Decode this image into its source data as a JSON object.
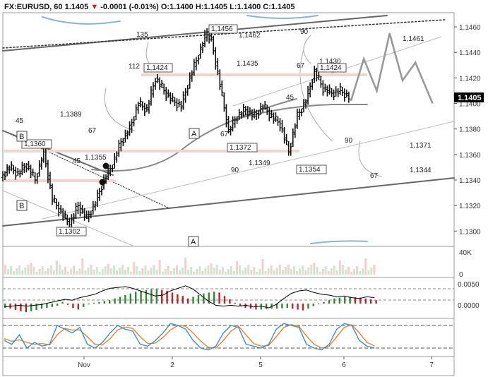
{
  "header": {
    "symbol": "FX:EURUSD, 60",
    "last": "1.1405",
    "change": "-0.0001 (-0.01%)",
    "open_label": "O:",
    "open": "1.1400",
    "high_label": "H:",
    "high": "1.1405",
    "low_label": "L:",
    "low": "1.1400",
    "close_label": "C:",
    "close": "1.1405"
  },
  "colors": {
    "up": "#2e8b2e",
    "down": "#cc1f1f",
    "price": "#000000",
    "macd_line": "#000000",
    "stoch_k": "#3a8fd6",
    "stoch_d": "#e8842c"
  },
  "chart_data": {
    "type": "line",
    "price_axis": {
      "ticks": [
        "1.1460",
        "1.1440",
        "1.1420",
        "1.1400",
        "1.1380",
        "1.1360",
        "1.1340",
        "1.1320",
        "1.1300"
      ],
      "range": [
        1.1288,
        1.147
      ],
      "last_label": "1.1405"
    },
    "x_axis": {
      "ticks": [
        "Nov",
        "2",
        "5",
        "6",
        "7"
      ]
    },
    "price_path": [
      [
        0,
        1.1342
      ],
      [
        4,
        1.135
      ],
      [
        8,
        1.1345
      ],
      [
        12,
        1.1352
      ],
      [
        16,
        1.134
      ],
      [
        20,
        1.1362
      ],
      [
        24,
        1.1325
      ],
      [
        28,
        1.1315
      ],
      [
        32,
        1.1305
      ],
      [
        36,
        1.132
      ],
      [
        40,
        1.131
      ],
      [
        44,
        1.1322
      ],
      [
        48,
        1.134
      ],
      [
        52,
        1.1352
      ],
      [
        56,
        1.137
      ],
      [
        60,
        1.138
      ],
      [
        64,
        1.14
      ],
      [
        68,
        1.1395
      ],
      [
        72,
        1.142
      ],
      [
        76,
        1.141
      ],
      [
        80,
        1.1402
      ],
      [
        84,
        1.1398
      ],
      [
        88,
        1.142
      ],
      [
        92,
        1.1438
      ],
      [
        96,
        1.1456
      ],
      [
        98,
        1.145
      ],
      [
        102,
        1.1415
      ],
      [
        106,
        1.1378
      ],
      [
        110,
        1.139
      ],
      [
        114,
        1.1395
      ],
      [
        118,
        1.139
      ],
      [
        122,
        1.1398
      ],
      [
        126,
        1.139
      ],
      [
        130,
        1.1384
      ],
      [
        134,
        1.1362
      ],
      [
        138,
        1.139
      ],
      [
        142,
        1.1402
      ],
      [
        146,
        1.1425
      ],
      [
        150,
        1.1412
      ],
      [
        154,
        1.1408
      ],
      [
        158,
        1.141
      ],
      [
        162,
        1.1405
      ]
    ],
    "projection": [
      [
        162,
        1.1402
      ],
      [
        168,
        1.1435
      ],
      [
        174,
        1.141
      ],
      [
        180,
        1.1455
      ],
      [
        186,
        1.1418
      ],
      [
        192,
        1.1432
      ],
      [
        200,
        1.14
      ]
    ],
    "levels": [
      {
        "label": "1,1461",
        "value": 1.1461
      },
      {
        "label": "1,1456",
        "value": 1.1456
      },
      {
        "label": "1,1462",
        "value": 1.1462
      },
      {
        "label": "1,1435",
        "value": 1.1435
      },
      {
        "label": "1,1430",
        "value": 1.143
      },
      {
        "label": "1,1424",
        "value": 1.1424
      },
      {
        "label": "1,1389",
        "value": 1.1389
      },
      {
        "label": "1,1372",
        "value": 1.1372
      },
      {
        "label": "1,1371",
        "value": 1.1371
      },
      {
        "label": "1,1360",
        "value": 1.136
      },
      {
        "label": "1,1355",
        "value": 1.1355
      },
      {
        "label": "1,1354",
        "value": 1.1354
      },
      {
        "label": "1,1349",
        "value": 1.1349
      },
      {
        "label": "1,1344",
        "value": 1.1344
      },
      {
        "label": "1,1302",
        "value": 1.1302
      }
    ],
    "angle_labels": [
      "135",
      "112",
      "90",
      "67",
      "45",
      "67",
      "45",
      "90",
      "67",
      "45",
      "90",
      "67",
      "45",
      "67"
    ],
    "wave_labels": [
      "B",
      "A",
      "B",
      "A"
    ],
    "volume_axis": {
      "ticks": [
        "40K",
        "0"
      ]
    },
    "macd_axis": {
      "ticks": [
        "0.0050",
        "0.0000"
      ]
    },
    "macd_hist": [
      -0.001,
      -0.0012,
      -0.0015,
      -0.0018,
      -0.002,
      -0.0018,
      -0.0015,
      -0.0012,
      -0.001,
      -0.0008,
      -0.0005,
      0.0004,
      -0.0003,
      -0.001,
      -0.0014,
      -0.0008,
      -0.0002,
      0.0002,
      0.0004,
      0.0006,
      0.0008,
      0.0012,
      0.0016,
      0.002,
      0.0024,
      0.0028,
      0.003,
      0.0032,
      0.0034,
      0.0034,
      0.0032,
      0.003,
      0.0026,
      0.0022,
      0.0018,
      0.0012,
      0.0016,
      0.002,
      0.0024,
      0.0026,
      0.0028,
      0.0026,
      0.0018,
      0.001,
      0.0002,
      -0.0006,
      -0.001,
      -0.0012,
      -0.0014,
      -0.0014,
      -0.0013,
      -0.0012,
      -0.0012,
      -0.0011,
      -0.001,
      -0.0012,
      -0.0014,
      -0.0016,
      -0.0012,
      -0.0006,
      0.0,
      0.0004,
      0.0008,
      0.0012,
      0.0014,
      0.0016,
      0.0016,
      0.0015,
      0.0014,
      0.0012,
      0.001,
      0.0008
    ],
    "macd_line": [
      -0.0008,
      -0.0006,
      -0.0004,
      -0.0006,
      -0.0004,
      -0.0002,
      0.0002,
      0.0006,
      0.001,
      0.0008,
      0.0014,
      0.0018,
      0.0022,
      0.003,
      0.0036,
      0.0038,
      0.004,
      0.0036,
      0.003,
      0.0024,
      0.0018,
      0.002,
      0.003,
      0.0036,
      0.0042,
      0.0034,
      0.002,
      0.0006,
      -0.0004,
      -0.0006,
      -0.0004,
      -0.0006,
      -0.0004,
      -0.0008,
      -0.0006,
      -0.001,
      -0.0002,
      0.0012,
      0.0024,
      0.003,
      0.0032,
      0.0026,
      0.0022,
      0.002,
      0.0016,
      0.0018,
      0.0014,
      0.0012,
      0.0016,
      0.0014
    ],
    "stoch_k": [
      40,
      30,
      55,
      20,
      35,
      25,
      30,
      80,
      70,
      60,
      75,
      30,
      20,
      35,
      60,
      80,
      70,
      65,
      30,
      25,
      40,
      60,
      85,
      80,
      70,
      40,
      20,
      15,
      25,
      60,
      80,
      75,
      30,
      25,
      20,
      30,
      70,
      85,
      80,
      75,
      30,
      20,
      15,
      30,
      70,
      85,
      80,
      40,
      25,
      20
    ],
    "stoch_d": [
      45,
      38,
      42,
      35,
      30,
      32,
      28,
      55,
      72,
      68,
      68,
      50,
      30,
      28,
      45,
      68,
      76,
      72,
      50,
      32,
      33,
      48,
      68,
      80,
      78,
      60,
      38,
      22,
      20,
      40,
      65,
      78,
      55,
      32,
      25,
      27,
      50,
      75,
      82,
      78,
      52,
      30,
      20,
      25,
      50,
      75,
      82,
      60,
      35,
      25
    ],
    "stoch_levels": [
      80,
      20
    ]
  }
}
